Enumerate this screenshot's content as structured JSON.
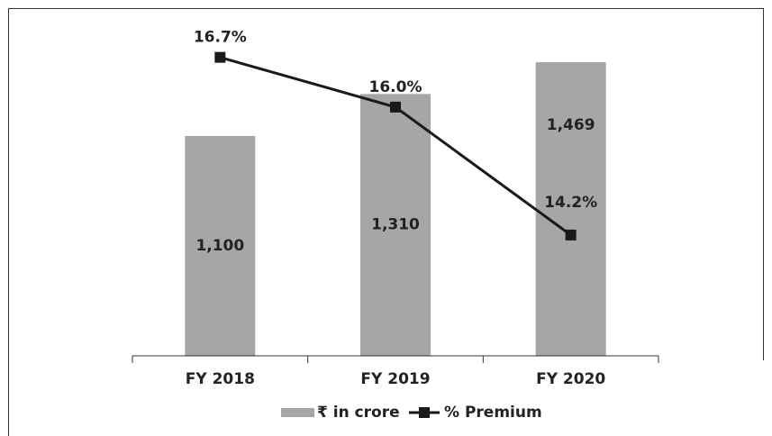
{
  "chart_data": {
    "type": "bar_line",
    "categories": [
      "FY 2018",
      "FY 2019",
      "FY 2020"
    ],
    "series": [
      {
        "name": "₹ in crore",
        "type": "bar",
        "color": "#a6a6a6",
        "values": [
          1100,
          1310,
          1469
        ],
        "value_labels": [
          "1,100",
          "1,310",
          "1,469"
        ]
      },
      {
        "name": "% Premium",
        "type": "line",
        "axis": "y2",
        "color": "#1a1a1a",
        "values": [
          16.7,
          16.0,
          14.2
        ],
        "value_labels": [
          "16.7%",
          "16.0%",
          "14.2%"
        ]
      }
    ],
    "ylim": [
      0,
      1600
    ],
    "y2lim": [
      12.5,
      17.0
    ]
  }
}
